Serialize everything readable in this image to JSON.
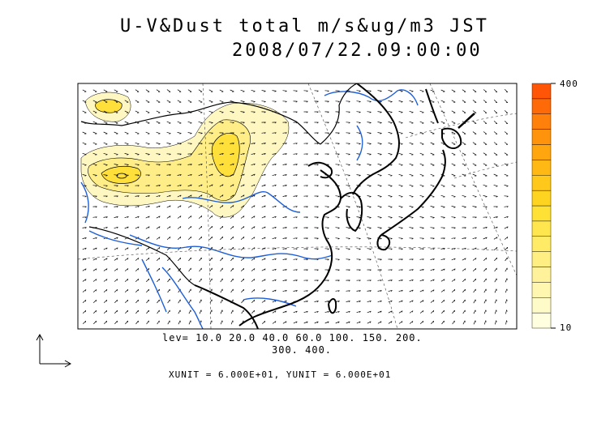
{
  "title": {
    "line1": "U-V&Dust total m/s&ug/m3 JST",
    "line2": "2008/07/22.09:00:00"
  },
  "contour_levels": {
    "line1": "lev= 10.0 20.0 40.0 60.0 100. 150. 200.",
    "line2": "300. 400."
  },
  "vector_units": "XUNIT = 6.000E+01, YUNIT = 6.000E+01",
  "colorbar": {
    "max_label": "400",
    "min_label": "10",
    "colors": [
      "#ffffe0",
      "#fffbc8",
      "#fff6b0",
      "#fff29a",
      "#ffef82",
      "#ffeb66",
      "#ffe64e",
      "#ffe135",
      "#ffd420",
      "#ffc81a",
      "#ffb814",
      "#ffa60f",
      "#ff940c",
      "#ff800a",
      "#ff6a08",
      "#ff5506"
    ]
  },
  "map_colors": {
    "coast": "#000000",
    "river": "#1e5fd6",
    "border": "#000000",
    "dust_light": "#fff7c2",
    "dust_mid": "#ffee88",
    "dust_high": "#ffdf3a"
  }
}
